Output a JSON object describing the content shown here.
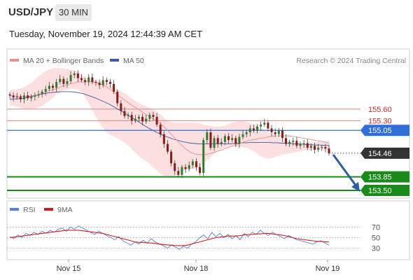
{
  "header": {
    "symbol": "USD/JPY",
    "timeframe": "30 MIN",
    "datetime": "Tuesday, November 19, 2024 12:44:39 AM CET"
  },
  "legend": {
    "ma20_label": "MA 20 + Bollinger Bands",
    "ma50_label": "MA 50",
    "credit": "Research © 2024 Trading Central",
    "rsi_label": "RSI",
    "ma9_label": "9MA"
  },
  "colors": {
    "ma20": "#ec8f8f",
    "bollinger_fill": "#fbd9d9",
    "ma50": "#3f5aa8",
    "resistance": "#e08080",
    "pivot": "#2f6fd6",
    "support": "#1a8a1a",
    "current": "#333333",
    "candle_up": "#2e7d2e",
    "candle_down": "#8b1a1a",
    "arrow": "#2a5fa8",
    "rsi": "#5b7fd6",
    "ma9": "#cc1f1f"
  },
  "chart_data": [
    {
      "type": "candlestick",
      "title": "USD/JPY 30 MIN",
      "x_ticks": [
        "Nov 15",
        "Nov 18",
        "Nov 19"
      ],
      "ylim": [
        153.3,
        156.7
      ],
      "levels": [
        {
          "value": 155.6,
          "label": "155.60",
          "kind": "resistance"
        },
        {
          "value": 155.3,
          "label": "155.30",
          "kind": "resistance"
        },
        {
          "value": 155.05,
          "label": "155.05",
          "kind": "pivot"
        },
        {
          "value": 154.46,
          "label": "154.46",
          "kind": "current"
        },
        {
          "value": 153.85,
          "label": "153.85",
          "kind": "support"
        },
        {
          "value": 153.5,
          "label": "153.50",
          "kind": "support"
        }
      ],
      "close": [
        155.95,
        155.9,
        155.92,
        155.85,
        155.95,
        155.88,
        155.92,
        155.95,
        155.98,
        156.05,
        156.12,
        156.2,
        156.15,
        156.3,
        156.38,
        156.25,
        156.32,
        156.48,
        156.52,
        156.4,
        156.35,
        156.3,
        156.42,
        156.3,
        156.28,
        156.22,
        156.35,
        156.3,
        156.25,
        156.05,
        155.75,
        155.55,
        155.42,
        155.45,
        155.3,
        155.35,
        155.4,
        155.28,
        155.35,
        155.45,
        155.4,
        155.2,
        154.95,
        154.7,
        154.5,
        154.2,
        154.0,
        153.9,
        154.1,
        154.05,
        154.15,
        154.25,
        154.1,
        153.95,
        154.8,
        155.0,
        154.6,
        154.85,
        154.7,
        154.75,
        154.9,
        154.8,
        154.85,
        154.7,
        154.88,
        154.95,
        155.0,
        155.1,
        155.05,
        155.15,
        155.2,
        155.25,
        155.1,
        155.0,
        154.95,
        155.05,
        154.85,
        154.7,
        154.75,
        154.78,
        154.65,
        154.7,
        154.72,
        154.6,
        154.65,
        154.55,
        154.6,
        154.62,
        154.58,
        154.46
      ],
      "ma20": [
        155.95,
        155.94,
        155.93,
        155.93,
        155.93,
        155.94,
        155.96,
        155.99,
        156.02,
        156.07,
        156.1,
        156.13,
        156.18,
        156.22,
        156.25,
        156.28,
        156.3,
        156.3,
        156.3,
        156.3,
        156.28,
        156.25,
        156.2,
        156.13,
        156.05,
        155.96,
        155.88,
        155.8,
        155.72,
        155.65,
        155.58,
        155.5,
        155.43,
        155.37,
        155.3,
        155.22,
        155.12,
        155.0,
        154.88,
        154.76,
        154.65,
        154.55,
        154.48,
        154.44,
        154.42,
        154.42,
        154.44,
        154.47,
        154.5,
        154.54,
        154.58,
        154.62,
        154.66,
        154.7,
        154.74,
        154.78,
        154.8,
        154.82,
        154.84,
        154.86,
        154.88,
        154.9,
        154.91,
        154.91,
        154.91,
        154.9,
        154.89,
        154.87,
        154.85,
        154.83,
        154.81,
        154.79,
        154.77,
        154.75,
        154.72
      ],
      "bb_upper": [
        156.1,
        156.1,
        156.12,
        156.15,
        156.2,
        156.28,
        156.38,
        156.48,
        156.56,
        156.62,
        156.65,
        156.66,
        156.66,
        156.64,
        156.62,
        156.6,
        156.55,
        156.45,
        156.38,
        156.34,
        156.33,
        156.32,
        156.3,
        156.25,
        156.18,
        156.1,
        156.04,
        155.98,
        155.9,
        155.82,
        155.75,
        155.7,
        155.65,
        155.6,
        155.55,
        155.45,
        155.35,
        155.28,
        155.25,
        155.25,
        155.25,
        155.25,
        155.25,
        155.25,
        155.22,
        155.2,
        155.18,
        155.15,
        155.14,
        155.15,
        155.18,
        155.22,
        155.26,
        155.28,
        155.28,
        155.26,
        155.22,
        155.18,
        155.12,
        155.05,
        155.0,
        154.95,
        154.88,
        154.82,
        154.78,
        154.75,
        154.73,
        154.72,
        154.72,
        154.72,
        154.73,
        154.75,
        154.76,
        154.77,
        154.78
      ],
      "bb_lower": [
        155.7,
        155.68,
        155.66,
        155.62,
        155.6,
        155.6,
        155.62,
        155.66,
        155.72,
        155.8,
        155.9,
        156.0,
        156.06,
        156.1,
        156.12,
        156.12,
        156.1,
        156.0,
        155.8,
        155.6,
        155.4,
        155.2,
        155.05,
        154.95,
        154.9,
        154.85,
        154.78,
        154.7,
        154.6,
        154.48,
        154.38,
        154.3,
        154.22,
        154.12,
        154.02,
        153.92,
        153.86,
        153.83,
        153.85,
        153.92,
        154.0,
        154.05,
        154.05,
        154.05,
        154.1,
        154.2,
        154.3,
        154.4,
        154.5,
        154.56,
        154.6,
        154.62,
        154.63,
        154.62,
        154.62,
        154.6,
        154.55,
        154.48,
        154.4,
        154.34,
        154.32,
        154.34,
        154.38,
        154.42,
        154.44,
        154.46,
        154.48,
        154.5,
        154.52,
        154.54,
        154.54,
        154.55,
        154.55,
        154.55,
        154.56
      ],
      "ma50": [
        155.85,
        155.86,
        155.87,
        155.88,
        155.9,
        155.92,
        155.95,
        155.98,
        156.0,
        156.02,
        156.03,
        156.04,
        156.05,
        156.05,
        156.05,
        156.04,
        156.02,
        156.0,
        155.96,
        155.92,
        155.88,
        155.83,
        155.78,
        155.73,
        155.67,
        155.6,
        155.54,
        155.47,
        155.4,
        155.33,
        155.26,
        155.19,
        155.12,
        155.06,
        155.0,
        154.95,
        154.9,
        154.86,
        154.82,
        154.79,
        154.76,
        154.74,
        154.72,
        154.71,
        154.7,
        154.7,
        154.7,
        154.7,
        154.7,
        154.7,
        154.7,
        154.7,
        154.71,
        154.72,
        154.73,
        154.73,
        154.74,
        154.74,
        154.74,
        154.74,
        154.74,
        154.73,
        154.73,
        154.72,
        154.72,
        154.71,
        154.7,
        154.7,
        154.69,
        154.68,
        154.68,
        154.67,
        154.67,
        154.66,
        154.66
      ]
    },
    {
      "type": "line",
      "title": "RSI",
      "x_ticks": [
        "Nov 15",
        "Nov 18",
        "Nov 19"
      ],
      "y_ticks": [
        70,
        50,
        30
      ],
      "ylim": [
        15,
        85
      ],
      "series": [
        {
          "name": "RSI",
          "values": [
            52,
            48,
            55,
            50,
            58,
            54,
            60,
            56,
            62,
            58,
            64,
            60,
            66,
            68,
            62,
            70,
            66,
            72,
            68,
            64,
            60,
            56,
            62,
            58,
            54,
            50,
            46,
            52,
            44,
            40,
            36,
            42,
            38,
            45,
            40,
            48,
            42,
            38,
            35,
            30,
            36,
            32,
            28,
            34,
            30,
            38,
            42,
            50,
            55,
            48,
            60,
            52,
            58,
            50,
            56,
            48,
            54,
            46,
            58,
            52,
            60,
            56,
            64,
            58,
            54,
            60,
            56,
            52,
            48,
            54,
            50,
            46,
            44,
            42,
            40,
            38,
            42,
            44,
            40,
            36
          ]
        },
        {
          "name": "9MA",
          "values": [
            50,
            51,
            52,
            53,
            54,
            55,
            56,
            57,
            58,
            59,
            60,
            61,
            62,
            63,
            64,
            64,
            64,
            64,
            63,
            62,
            61,
            60,
            59,
            58,
            56,
            54,
            52,
            50,
            48,
            46,
            44,
            42,
            41,
            41,
            40,
            40,
            39,
            38,
            37,
            36,
            36,
            35,
            35,
            35,
            36,
            38,
            40,
            42,
            44,
            46,
            48,
            50,
            51,
            52,
            53,
            53,
            53,
            54,
            55,
            56,
            56,
            57,
            57,
            58,
            58,
            57,
            56,
            55,
            54,
            52,
            50,
            48,
            47,
            46,
            45,
            44,
            43,
            43,
            42,
            42
          ]
        }
      ]
    }
  ]
}
